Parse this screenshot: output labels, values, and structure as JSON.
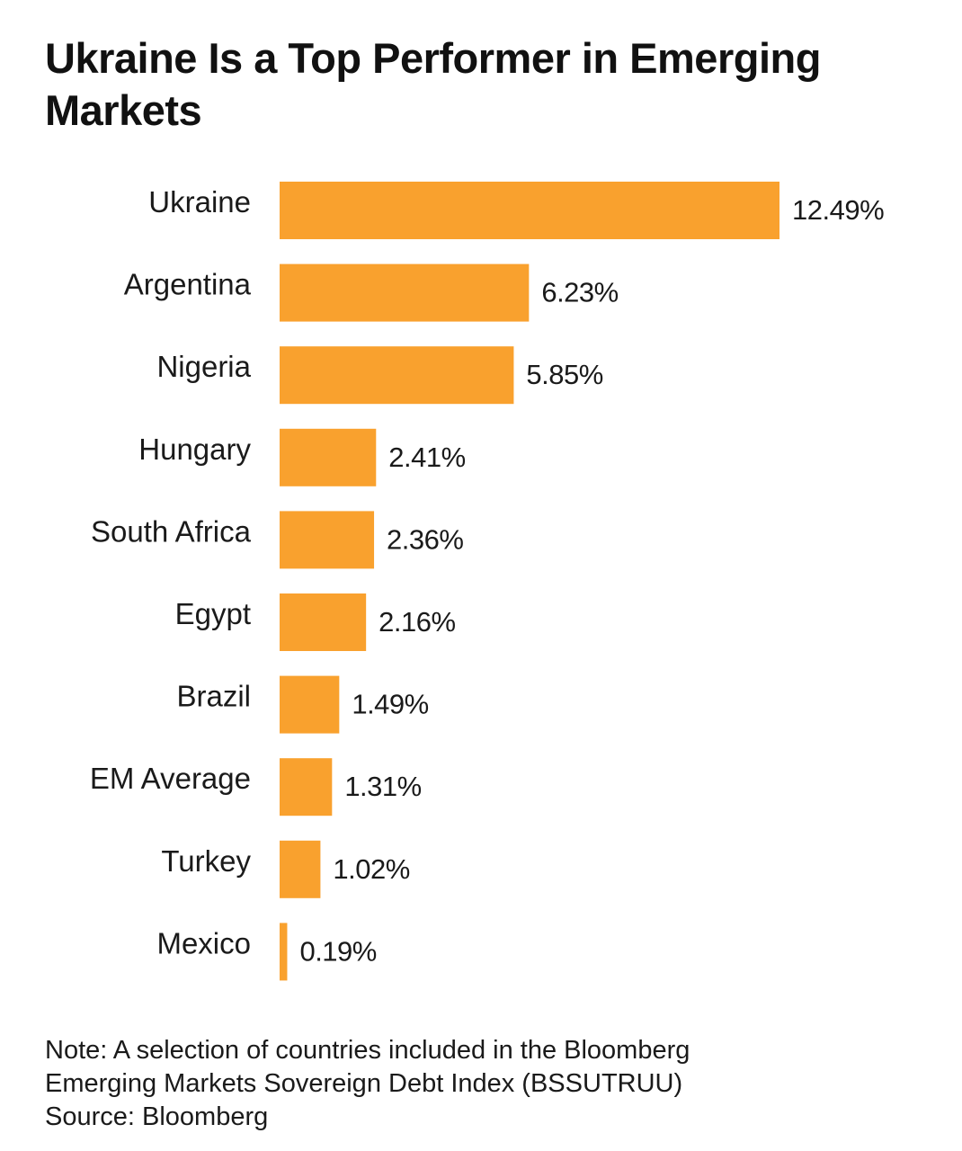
{
  "header": {
    "title": "Ukraine Is a Top Performer in Emerging Markets"
  },
  "chart_data": {
    "type": "bar",
    "orientation": "horizontal",
    "title": "Ukraine Is a Top Performer in Emerging Markets",
    "categories": [
      "Ukraine",
      "Argentina",
      "Nigeria",
      "Hungary",
      "South Africa",
      "Egypt",
      "Brazil",
      "EM Average",
      "Turkey",
      "Mexico"
    ],
    "values": [
      12.49,
      6.23,
      5.85,
      2.41,
      2.36,
      2.16,
      1.49,
      1.31,
      1.02,
      0.19
    ],
    "value_labels": [
      "12.49%",
      "6.23%",
      "5.85%",
      "2.41%",
      "2.36%",
      "2.16%",
      "1.49%",
      "1.31%",
      "1.02%",
      "0.19%"
    ],
    "bar_color": "#f9a12e",
    "xlim": [
      0,
      12.49
    ],
    "grid": false,
    "legend": "none"
  },
  "footer": {
    "note_line1": "Note: A selection of countries included in the Bloomberg",
    "note_line2": "Emerging Markets Sovereign Debt Index (BSSUTRUU)",
    "source": "Source: Bloomberg"
  }
}
